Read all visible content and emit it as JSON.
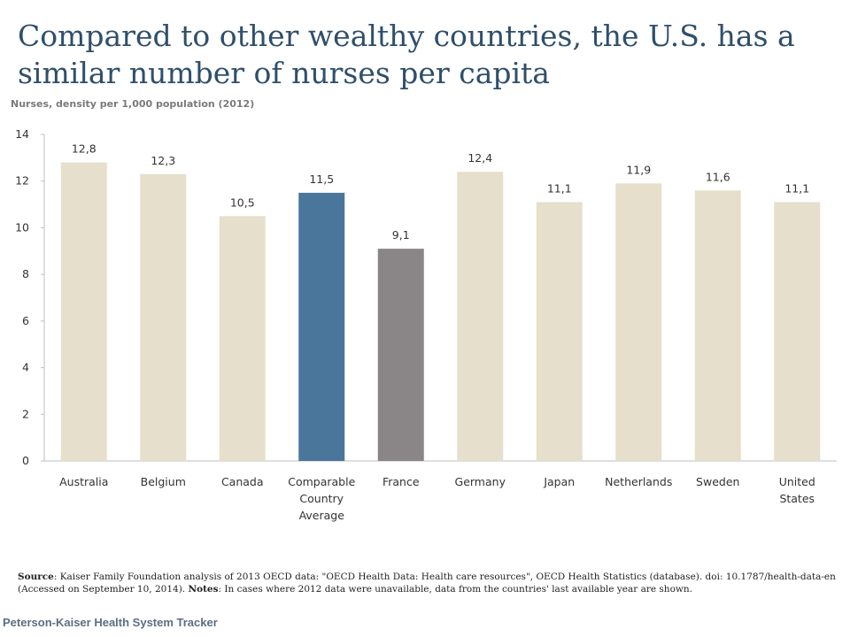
{
  "title": "Compared to other wealthy countries, the U.S. has a similar number of nurses per capita",
  "subtitle": "Nurses, density per 1,000  population (2012)",
  "source": {
    "label1": "Source",
    "text1": ": Kaiser Family Foundation analysis of 2013 OECD data: \"OECD Health Data: Health care resources\", OECD Health Statistics (database).  doi: 10.1787/health-data-en (Accessed on September 10, 2014). ",
    "label2": "Notes",
    "text2": ":  In cases where 2012 data were unavailable, data from the countries' last available year are shown."
  },
  "brand": "Peterson-Kaiser Health System Tracker",
  "colors": {
    "default_bar": "#e5dfcb",
    "average_bar": "#4a769c",
    "france_bar": "#8a8586",
    "axis": "#bfbfbf",
    "text": "#333333"
  },
  "chart_data": {
    "type": "bar",
    "categories": [
      "Australia",
      "Belgium",
      "Canada",
      "Comparable Country Average",
      "France",
      "Germany",
      "Japan",
      "Netherlands",
      "Sweden",
      "United States"
    ],
    "category_lines": [
      [
        "Australia"
      ],
      [
        "Belgium"
      ],
      [
        "Canada"
      ],
      [
        "Comparable",
        "Country",
        "Average"
      ],
      [
        "France"
      ],
      [
        "Germany"
      ],
      [
        "Japan"
      ],
      [
        "Netherlands"
      ],
      [
        "Sweden"
      ],
      [
        "United",
        "States"
      ]
    ],
    "values": [
      12.8,
      12.3,
      10.5,
      11.5,
      9.1,
      12.4,
      11.1,
      11.9,
      11.6,
      11.1
    ],
    "value_labels": [
      "12,8",
      "12,3",
      "10,5",
      "11,5",
      "9,1",
      "12,4",
      "11,1",
      "11,9",
      "11,6",
      "11,1"
    ],
    "bar_colors": [
      "#e5dfcb",
      "#e5dfcb",
      "#e5dfcb",
      "#4a769c",
      "#8a8586",
      "#e5dfcb",
      "#e5dfcb",
      "#e5dfcb",
      "#e5dfcb",
      "#e5dfcb"
    ],
    "ylim": [
      0,
      14
    ],
    "yticks": [
      0,
      2,
      4,
      6,
      8,
      10,
      12,
      14
    ],
    "grid": false,
    "legend": "none",
    "xlabel": "",
    "ylabel": ""
  }
}
